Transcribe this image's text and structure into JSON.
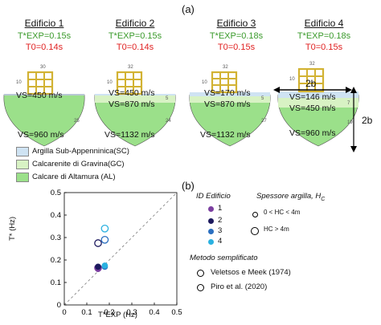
{
  "panel_a_label": "(a)",
  "panel_b_label": "(b)",
  "buildings": [
    {
      "name": "Edificio 1",
      "texp": "T*EXP=0.15s",
      "t0": "T0=0.14s",
      "vs_top": "VS=450 m/s",
      "vs_mid": "",
      "vs_bottom": "VS=960 m/s",
      "dims": [
        "30",
        "10",
        "25"
      ]
    },
    {
      "name": "Edificio 2",
      "texp": "T*EXP=0.15s",
      "t0": "T0=0.14s",
      "vs_top": "VS=450 m/s",
      "vs_mid": "VS=870 m/s",
      "vs_bottom": "VS=1132 m/s",
      "dims": [
        "32",
        "10",
        "24",
        "5"
      ]
    },
    {
      "name": "Edificio 3",
      "texp": "T*EXP=0.18s",
      "t0": "T0=0.15s",
      "vs_top": "VS=170 m/s",
      "vs_mid": "VS=870 m/s",
      "vs_bottom": "VS=1132 m/s",
      "dims": [
        "32",
        "10",
        "27",
        "5"
      ]
    },
    {
      "name": "Edificio 4",
      "texp": "T*EXP=0.18s",
      "t0": "T0=0.15s",
      "vs_top": "VS=146 m/s",
      "vs_mid": "VS=450 m/s",
      "vs_bottom": "VS=960 m/s",
      "dims": [
        "32",
        "10",
        "19",
        "7",
        "2b"
      ]
    }
  ],
  "label_2b": "2b",
  "legend_soils": [
    {
      "label": "Argilla Sub-Appenninica(SC)",
      "color": "#cfe3f3"
    },
    {
      "label": "Calcarenite di Gravina(GC)",
      "color": "#d8f2c4"
    },
    {
      "label": "Calcare di Altamura (AL)",
      "color": "#9be08a"
    }
  ],
  "legend_b": {
    "id_title": "ID Edificio",
    "ids": [
      {
        "label": "1",
        "color": "#7b3fa0"
      },
      {
        "label": "2",
        "color": "#1d1a5e"
      },
      {
        "label": "3",
        "color": "#2a6fc0"
      },
      {
        "label": "4",
        "color": "#2ab1e0"
      }
    ],
    "spessore_title": "Spessore argilla, H",
    "spessore_sub": "C",
    "spessore_items": [
      "0 < HC < 4m",
      "HC > 4m"
    ],
    "metodo_title": "Metodo semplificato",
    "metodo_items": [
      "Veletsos e Meek (1974)",
      "Piro et al. (2020)"
    ]
  },
  "chart_data": {
    "type": "scatter",
    "xlabel": "T*EXP (Hz)",
    "ylabel": "T* (Hz)",
    "xlim": [
      0,
      0.5
    ],
    "ylim": [
      0,
      0.5
    ],
    "xticks": [
      "0",
      "0.1",
      "0.2",
      "0.3",
      "0.4",
      "0.5"
    ],
    "yticks": [
      "0",
      "0.1",
      "0.2",
      "0.3",
      "0.4",
      "0.5"
    ],
    "grid": false,
    "reference_line": "1:1 dashed",
    "series": [
      {
        "name": "1",
        "color": "#7b3fa0",
        "points": [
          {
            "x": 0.15,
            "y": 0.16,
            "filled": true
          },
          {
            "x": 0.15,
            "y": 0.165,
            "filled": false
          }
        ]
      },
      {
        "name": "2",
        "color": "#1d1a5e",
        "points": [
          {
            "x": 0.15,
            "y": 0.275,
            "filled": false
          },
          {
            "x": 0.15,
            "y": 0.17,
            "filled": true
          }
        ]
      },
      {
        "name": "3",
        "color": "#2a6fc0",
        "points": [
          {
            "x": 0.18,
            "y": 0.17,
            "filled": true
          },
          {
            "x": 0.18,
            "y": 0.29,
            "filled": false
          }
        ]
      },
      {
        "name": "4",
        "color": "#2ab1e0",
        "points": [
          {
            "x": 0.18,
            "y": 0.175,
            "filled": true
          },
          {
            "x": 0.18,
            "y": 0.34,
            "filled": false
          }
        ]
      }
    ]
  }
}
